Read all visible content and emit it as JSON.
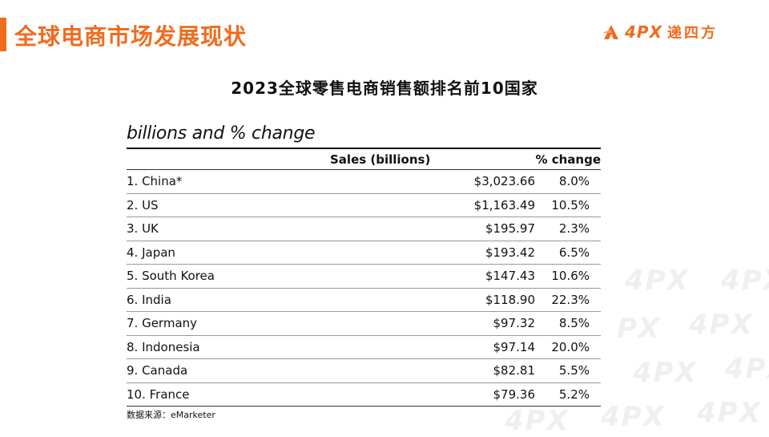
{
  "header": {
    "title": "全球电商市场发展现状",
    "logo_text": "4PX",
    "logo_cn": "递四方",
    "brand_color": "#F26B1D"
  },
  "slide": {
    "subtitle": "2023全球零售电商销售额排名前10国家",
    "source": "数据来源：eMarketer"
  },
  "watermark_text": "4PX",
  "watermark_partial": "PX",
  "table": {
    "caption": "billions and % change",
    "columns": [
      "",
      "Sales (billions)",
      "% change"
    ],
    "rows": [
      {
        "country": "1. China*",
        "sales": "$3,023.66",
        "change": "8.0%"
      },
      {
        "country": "2. US",
        "sales": "$1,163.49",
        "change": "10.5%"
      },
      {
        "country": "3. UK",
        "sales": "$195.97",
        "change": "2.3%"
      },
      {
        "country": "4. Japan",
        "sales": "$193.42",
        "change": "6.5%"
      },
      {
        "country": "5. South Korea",
        "sales": "$147.43",
        "change": "10.6%"
      },
      {
        "country": "6. India",
        "sales": "$118.90",
        "change": "22.3%"
      },
      {
        "country": "7. Germany",
        "sales": "$97.32",
        "change": "8.5%"
      },
      {
        "country": "8. Indonesia",
        "sales": "$97.14",
        "change": "20.0%"
      },
      {
        "country": "9. Canada",
        "sales": "$82.81",
        "change": "5.5%"
      },
      {
        "country": "10. France",
        "sales": "$79.36",
        "change": "5.2%"
      }
    ]
  }
}
